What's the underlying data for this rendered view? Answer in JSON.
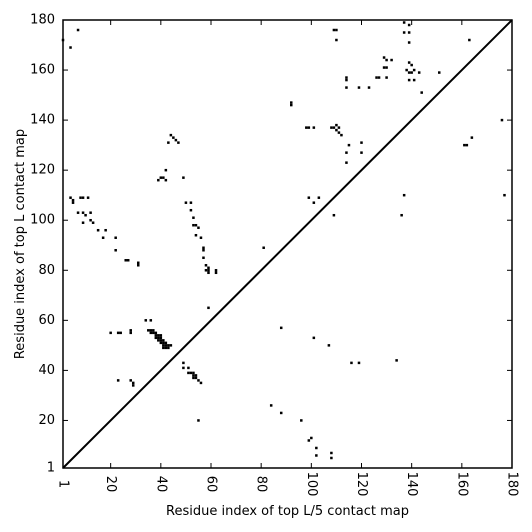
{
  "chart_data": {
    "type": "scatter",
    "title": "",
    "xlabel": "Residue index of top L/5 contact map",
    "ylabel": "Residue index of top L contact map",
    "xlim": [
      1,
      180
    ],
    "ylim": [
      1,
      180
    ],
    "xticks": [
      1,
      20,
      40,
      60,
      80,
      100,
      120,
      140,
      160,
      180
    ],
    "yticks": [
      1,
      20,
      40,
      60,
      80,
      100,
      120,
      140,
      160,
      180
    ],
    "xtick_labels": [
      "1",
      "20",
      "40",
      "60",
      "80",
      "100",
      "120",
      "140",
      "160",
      "180"
    ],
    "ytick_labels": [
      "1",
      "20",
      "40",
      "60",
      "80",
      "100",
      "120",
      "140",
      "160",
      "180"
    ],
    "grid": false,
    "legend": null,
    "marker_color": "#000000",
    "diagonal_line": [
      [
        1,
        1
      ],
      [
        180,
        180
      ]
    ],
    "upper_triangle_points": [
      [
        1,
        172
      ],
      [
        4,
        169
      ],
      [
        7,
        176
      ],
      [
        4,
        109
      ],
      [
        5,
        108
      ],
      [
        5,
        107
      ],
      [
        7,
        103
      ],
      [
        8,
        109
      ],
      [
        9,
        109
      ],
      [
        9,
        103
      ],
      [
        10,
        102
      ],
      [
        11,
        109
      ],
      [
        12,
        103
      ],
      [
        12,
        100
      ],
      [
        13,
        99
      ],
      [
        9,
        99
      ],
      [
        15,
        96
      ],
      [
        17,
        93
      ],
      [
        18,
        96
      ],
      [
        22,
        93
      ],
      [
        22,
        88
      ],
      [
        26,
        84
      ],
      [
        27,
        84
      ],
      [
        31,
        83
      ],
      [
        31,
        82
      ],
      [
        39,
        116
      ],
      [
        40,
        117
      ],
      [
        41,
        117
      ],
      [
        42,
        116
      ],
      [
        42,
        120
      ],
      [
        43,
        131
      ],
      [
        44,
        134
      ],
      [
        45,
        133
      ],
      [
        46,
        132
      ],
      [
        47,
        131
      ],
      [
        49,
        117
      ],
      [
        50,
        107
      ],
      [
        52,
        107
      ],
      [
        52,
        104
      ],
      [
        53,
        101
      ],
      [
        53,
        98
      ],
      [
        54,
        98
      ],
      [
        55,
        97
      ],
      [
        54,
        94
      ],
      [
        56,
        93
      ],
      [
        57,
        89
      ],
      [
        57,
        88
      ],
      [
        57,
        85
      ],
      [
        58,
        82
      ],
      [
        59,
        81
      ],
      [
        58,
        80
      ],
      [
        59,
        80
      ],
      [
        59,
        79
      ],
      [
        62,
        80
      ],
      [
        62,
        79
      ],
      [
        81,
        89
      ],
      [
        92,
        147
      ],
      [
        92,
        146
      ],
      [
        98,
        137
      ],
      [
        99,
        137
      ],
      [
        101,
        137
      ],
      [
        99,
        109
      ],
      [
        101,
        107
      ],
      [
        103,
        109
      ],
      [
        109,
        102
      ],
      [
        109,
        137
      ],
      [
        110,
        136
      ],
      [
        111,
        137
      ],
      [
        111,
        135
      ],
      [
        112,
        134
      ],
      [
        108,
        137
      ],
      [
        110,
        138
      ],
      [
        109,
        176
      ],
      [
        110,
        176
      ],
      [
        110,
        172
      ],
      [
        114,
        157
      ],
      [
        114,
        156
      ],
      [
        114,
        153
      ],
      [
        115,
        130
      ],
      [
        114,
        127
      ],
      [
        114,
        123
      ],
      [
        119,
        153
      ],
      [
        120,
        131
      ],
      [
        120,
        127
      ],
      [
        123,
        153
      ],
      [
        126,
        157
      ],
      [
        127,
        157
      ],
      [
        129,
        165
      ],
      [
        130,
        164
      ],
      [
        129,
        161
      ],
      [
        130,
        161
      ],
      [
        130,
        157
      ],
      [
        132,
        164
      ],
      [
        137,
        179
      ],
      [
        137,
        175
      ],
      [
        139,
        178
      ],
      [
        139,
        175
      ],
      [
        139,
        171
      ],
      [
        137,
        110
      ],
      [
        136,
        102
      ],
      [
        139,
        163
      ],
      [
        140,
        162
      ],
      [
        138,
        160
      ],
      [
        139,
        159
      ],
      [
        141,
        160
      ],
      [
        140,
        159
      ],
      [
        143,
        159
      ],
      [
        139,
        156
      ],
      [
        141,
        156
      ],
      [
        144,
        151
      ],
      [
        151,
        159
      ],
      [
        161,
        130
      ],
      [
        162,
        130
      ],
      [
        163,
        172
      ],
      [
        164,
        133
      ],
      [
        176,
        140
      ],
      [
        177,
        110
      ]
    ],
    "lower_triangle_points": [
      [
        20,
        55
      ],
      [
        23,
        55
      ],
      [
        24,
        55
      ],
      [
        28,
        56
      ],
      [
        28,
        55
      ],
      [
        23,
        36
      ],
      [
        28,
        36
      ],
      [
        29,
        35
      ],
      [
        29,
        34
      ],
      [
        34,
        60
      ],
      [
        36,
        60
      ],
      [
        35,
        56
      ],
      [
        36,
        56
      ],
      [
        37,
        56
      ],
      [
        36,
        55
      ],
      [
        37,
        55
      ],
      [
        38,
        55
      ],
      [
        38,
        54
      ],
      [
        39,
        54
      ],
      [
        40,
        54
      ],
      [
        38,
        53
      ],
      [
        39,
        53
      ],
      [
        40,
        53
      ],
      [
        39,
        52
      ],
      [
        40,
        52
      ],
      [
        41,
        52
      ],
      [
        40,
        51
      ],
      [
        41,
        51
      ],
      [
        42,
        51
      ],
      [
        41,
        50
      ],
      [
        42,
        50
      ],
      [
        43,
        50
      ],
      [
        44,
        50
      ],
      [
        41,
        49
      ],
      [
        42,
        49
      ],
      [
        43,
        49
      ],
      [
        49,
        43
      ],
      [
        49,
        41
      ],
      [
        51,
        41
      ],
      [
        51,
        39
      ],
      [
        52,
        39
      ],
      [
        53,
        39
      ],
      [
        53,
        38
      ],
      [
        54,
        38
      ],
      [
        53,
        37
      ],
      [
        54,
        37
      ],
      [
        55,
        36
      ],
      [
        56,
        35
      ],
      [
        55,
        20
      ],
      [
        59,
        65
      ],
      [
        84,
        26
      ],
      [
        88,
        23
      ],
      [
        88,
        57
      ],
      [
        96,
        20
      ],
      [
        99,
        12
      ],
      [
        100,
        13
      ],
      [
        101,
        53
      ],
      [
        102,
        9
      ],
      [
        102,
        6
      ],
      [
        107,
        50
      ],
      [
        108,
        5
      ],
      [
        108,
        7
      ],
      [
        116,
        43
      ],
      [
        119,
        43
      ],
      [
        134,
        44
      ]
    ]
  }
}
